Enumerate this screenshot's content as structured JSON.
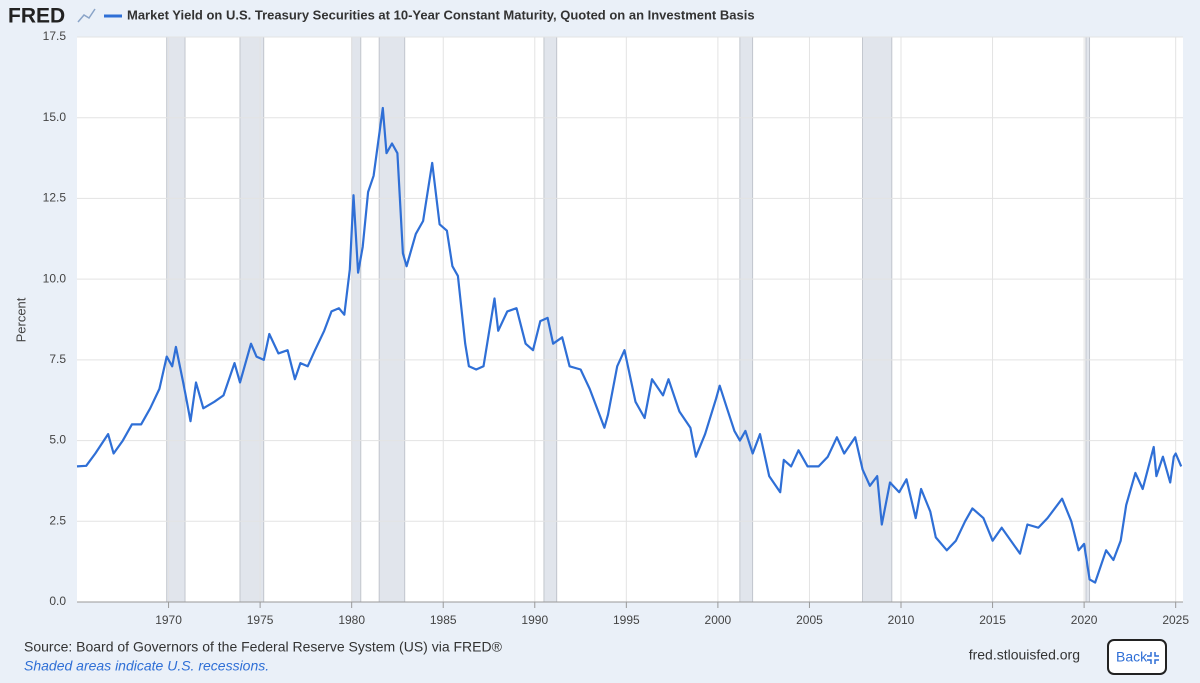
{
  "brand": "FRED",
  "chart_data": {
    "type": "line",
    "title": "Market Yield on U.S. Treasury Securities at 10-Year Constant Maturity, Quoted on an Investment Basis",
    "y_label": "Percent",
    "x": [
      1965.0,
      1965.5,
      1966.0,
      1966.7,
      1967.0,
      1967.5,
      1968.0,
      1968.5,
      1969.0,
      1969.5,
      1969.9,
      1970.2,
      1970.4,
      1970.8,
      1971.0,
      1971.2,
      1971.5,
      1971.9,
      1972.5,
      1973.0,
      1973.6,
      1973.9,
      1974.5,
      1974.8,
      1975.2,
      1975.5,
      1976.0,
      1976.5,
      1976.9,
      1977.2,
      1977.6,
      1978.0,
      1978.5,
      1978.9,
      1979.3,
      1979.6,
      1979.9,
      1980.1,
      1980.35,
      1980.6,
      1980.9,
      1981.2,
      1981.7,
      1981.9,
      1982.2,
      1982.5,
      1982.8,
      1983.0,
      1983.5,
      1983.9,
      1984.4,
      1984.8,
      1985.2,
      1985.5,
      1985.8,
      1986.2,
      1986.4,
      1986.8,
      1987.2,
      1987.8,
      1988.0,
      1988.5,
      1989.0,
      1989.5,
      1989.9,
      1990.3,
      1990.7,
      1991.0,
      1991.5,
      1991.9,
      1992.5,
      1993.0,
      1993.8,
      1994.0,
      1994.5,
      1994.9,
      1995.5,
      1996.0,
      1996.4,
      1997.0,
      1997.3,
      1997.9,
      1998.5,
      1998.8,
      1999.3,
      1999.9,
      2000.1,
      2000.5,
      2000.9,
      2001.2,
      2001.5,
      2001.9,
      2002.3,
      2002.8,
      2003.4,
      2003.6,
      2004.0,
      2004.4,
      2004.9,
      2005.5,
      2006.0,
      2006.5,
      2006.9,
      2007.5,
      2007.9,
      2008.3,
      2008.7,
      2008.95,
      2009.4,
      2009.9,
      2010.3,
      2010.8,
      2011.1,
      2011.6,
      2011.9,
      2012.5,
      2013.0,
      2013.5,
      2013.9,
      2014.5,
      2015.0,
      2015.5,
      2016.5,
      2016.9,
      2017.5,
      2018.0,
      2018.8,
      2019.3,
      2019.7,
      2020.0,
      2020.3,
      2020.6,
      2021.2,
      2021.6,
      2022.0,
      2022.3,
      2022.8,
      2023.2,
      2023.8,
      2023.95,
      2024.3,
      2024.7,
      2024.9,
      2025.0,
      2025.3
    ],
    "series": [
      {
        "name": "Market Yield on U.S. Treasury Securities at 10-Year Constant Maturity, Quoted on an Investment Basis",
        "color": "#2f6fd6",
        "values": [
          4.2,
          4.22,
          4.6,
          5.2,
          4.6,
          5.0,
          5.5,
          5.5,
          6.0,
          6.6,
          7.6,
          7.3,
          7.9,
          6.8,
          6.2,
          5.6,
          6.8,
          6.0,
          6.2,
          6.4,
          7.4,
          6.8,
          8.0,
          7.6,
          7.5,
          8.3,
          7.7,
          7.8,
          6.9,
          7.4,
          7.3,
          7.8,
          8.4,
          9.0,
          9.1,
          8.9,
          10.3,
          12.6,
          10.2,
          11.0,
          12.7,
          13.2,
          15.3,
          13.9,
          14.2,
          13.9,
          10.8,
          10.4,
          11.4,
          11.8,
          13.6,
          11.7,
          11.5,
          10.4,
          10.1,
          8.0,
          7.3,
          7.2,
          7.3,
          9.4,
          8.4,
          9.0,
          9.1,
          8.0,
          7.8,
          8.7,
          8.8,
          8.0,
          8.2,
          7.3,
          7.2,
          6.6,
          5.4,
          5.8,
          7.3,
          7.8,
          6.2,
          5.7,
          6.9,
          6.4,
          6.9,
          5.9,
          5.4,
          4.5,
          5.2,
          6.3,
          6.7,
          6.0,
          5.3,
          5.0,
          5.3,
          4.6,
          5.2,
          3.9,
          3.4,
          4.4,
          4.2,
          4.7,
          4.2,
          4.2,
          4.5,
          5.1,
          4.6,
          5.1,
          4.1,
          3.6,
          3.9,
          2.4,
          3.7,
          3.4,
          3.8,
          2.6,
          3.5,
          2.8,
          2.0,
          1.6,
          1.9,
          2.5,
          2.9,
          2.6,
          1.9,
          2.3,
          1.5,
          2.4,
          2.3,
          2.6,
          3.2,
          2.5,
          1.6,
          1.8,
          0.7,
          0.6,
          1.6,
          1.3,
          1.9,
          3.0,
          4.0,
          3.5,
          4.8,
          3.9,
          4.5,
          3.7,
          4.5,
          4.6,
          4.2
        ]
      }
    ],
    "recessions": [
      [
        1969.9,
        1970.9
      ],
      [
        1973.9,
        1975.2
      ],
      [
        1980.0,
        1980.5
      ],
      [
        1981.5,
        1982.9
      ],
      [
        1990.5,
        1991.2
      ],
      [
        2001.2,
        2001.9
      ],
      [
        2007.9,
        2009.5
      ],
      [
        2020.1,
        2020.3
      ]
    ],
    "xlim": [
      1965.0,
      2025.4
    ],
    "xticks": [
      1970,
      1975,
      1980,
      1985,
      1990,
      1995,
      2000,
      2005,
      2010,
      2015,
      2020,
      2025
    ],
    "ylim": [
      0,
      17.5
    ],
    "yticks": [
      {
        "value": 0,
        "label": "0.0"
      },
      2.5,
      {
        "value": 5,
        "label": "5.0"
      },
      7.5,
      {
        "value": 10,
        "label": "10.0"
      },
      12.5,
      {
        "value": 15,
        "label": "15.0"
      },
      17.5
    ],
    "grid": true
  },
  "footer": {
    "source": "Source: Board of Governors of the Federal Reserve System (US) via FRED®",
    "note": "Shaded areas indicate U.S. recessions.",
    "site": "fred.stlouisfed.org",
    "button": "Back"
  }
}
